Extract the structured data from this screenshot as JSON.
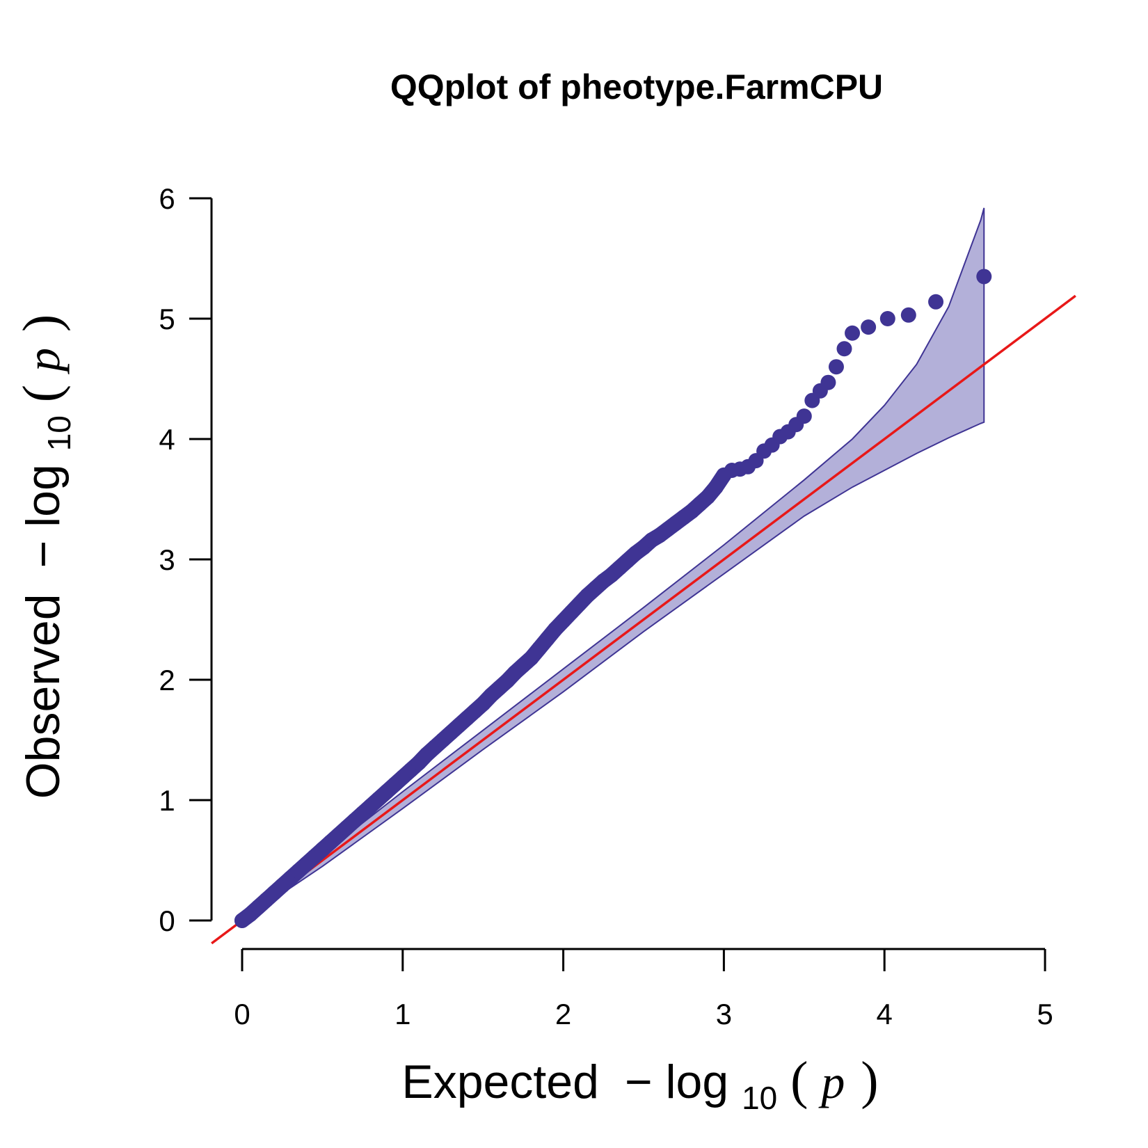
{
  "chart_data": {
    "type": "scatter",
    "title": "QQplot of pheotype.FarmCPU",
    "xlabel": {
      "main": "Expected",
      "minus": "−",
      "log": "log",
      "base": "10",
      "open": "(",
      "var": "p",
      "close": ")"
    },
    "ylabel": {
      "main": "Observed",
      "minus": "−",
      "log": "log",
      "base": "10",
      "open": "(",
      "var": "p",
      "close": ")"
    },
    "xlim": [
      0,
      5
    ],
    "ylim": [
      0,
      6
    ],
    "xticks": [
      "0",
      "1",
      "2",
      "3",
      "4",
      "5"
    ],
    "yticks": [
      "0",
      "1",
      "2",
      "3",
      "4",
      "5",
      "6"
    ],
    "grid": false,
    "colors": {
      "points": "#3f3494",
      "ci_fill": "#b3b0d9",
      "ci_edge": "#3f3494",
      "reference_line": "#e81818"
    },
    "reference_line": {
      "slope": 1,
      "intercept": 0
    },
    "confidence_band": {
      "x": [
        0,
        0.5,
        1,
        1.5,
        2,
        2.5,
        3,
        3.5,
        3.8,
        4,
        4.2,
        4.4,
        4.6,
        4.62
      ],
      "upper": [
        0.02,
        0.55,
        1.07,
        1.58,
        2.09,
        2.6,
        3.12,
        3.66,
        4.0,
        4.28,
        4.62,
        5.1,
        5.82,
        5.92
      ],
      "lower": [
        0,
        0.45,
        0.93,
        1.42,
        1.9,
        2.4,
        2.88,
        3.36,
        3.6,
        3.74,
        3.88,
        4.01,
        4.13,
        4.14
      ]
    },
    "series": [
      {
        "x": [
          0,
          0.05,
          0.1,
          0.15,
          0.2,
          0.25,
          0.3,
          0.35,
          0.4,
          0.45,
          0.5,
          0.55,
          0.6,
          0.65,
          0.7,
          0.75,
          0.8,
          0.85,
          0.9,
          0.95,
          1.0,
          1.05,
          1.1,
          1.15,
          1.2,
          1.25,
          1.3,
          1.35,
          1.4,
          1.45,
          1.5,
          1.55,
          1.6,
          1.65,
          1.7,
          1.75,
          1.8,
          1.85,
          1.9,
          1.95,
          2.0,
          2.05,
          2.1,
          2.15,
          2.2,
          2.25,
          2.3,
          2.35,
          2.4,
          2.45,
          2.5,
          2.55,
          2.6,
          2.65,
          2.7,
          2.75,
          2.8,
          2.85,
          2.9,
          2.95,
          3.0,
          3.05,
          3.1,
          3.15,
          3.2,
          3.25,
          3.3,
          3.35,
          3.4,
          3.45,
          3.5,
          3.55,
          3.6,
          3.65,
          3.7,
          3.75,
          3.8,
          3.9,
          4.02,
          4.15,
          4.32,
          4.62
        ],
        "y": [
          0,
          0.05,
          0.11,
          0.17,
          0.23,
          0.29,
          0.35,
          0.41,
          0.47,
          0.53,
          0.59,
          0.65,
          0.71,
          0.77,
          0.83,
          0.89,
          0.95,
          1.01,
          1.07,
          1.13,
          1.19,
          1.25,
          1.31,
          1.38,
          1.44,
          1.5,
          1.56,
          1.62,
          1.68,
          1.74,
          1.8,
          1.87,
          1.93,
          1.99,
          2.06,
          2.12,
          2.18,
          2.26,
          2.34,
          2.42,
          2.49,
          2.56,
          2.63,
          2.7,
          2.76,
          2.82,
          2.87,
          2.93,
          2.99,
          3.05,
          3.1,
          3.16,
          3.2,
          3.25,
          3.3,
          3.35,
          3.4,
          3.46,
          3.52,
          3.6,
          3.7,
          3.74,
          3.75,
          3.77,
          3.82,
          3.9,
          3.95,
          4.02,
          4.06,
          4.12,
          4.19,
          4.32,
          4.4,
          4.47,
          4.6,
          4.75,
          4.88,
          4.93,
          5.0,
          5.03,
          5.14,
          5.35
        ]
      }
    ]
  }
}
